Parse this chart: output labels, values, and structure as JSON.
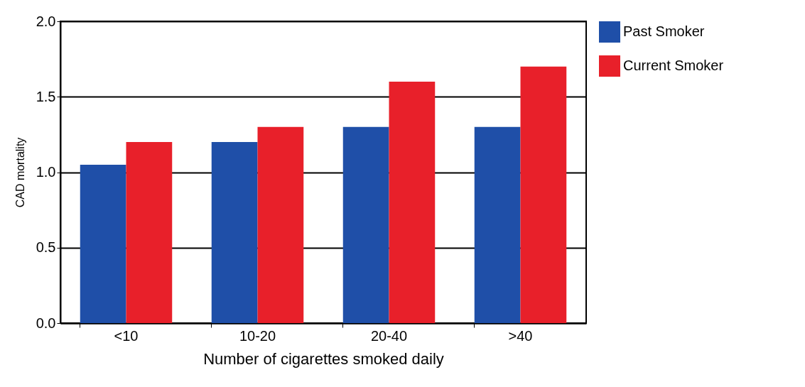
{
  "chart_data": {
    "type": "bar",
    "xlabel": "Number of cigarettes smoked daily",
    "ylabel": "CAD mortality",
    "categories": [
      "<10",
      "10-20",
      "20-40",
      ">40"
    ],
    "series": [
      {
        "name": "Past Smoker",
        "color": "#1f4fa8",
        "values": [
          1.05,
          1.2,
          1.3,
          1.3
        ]
      },
      {
        "name": "Current Smoker",
        "color": "#e8202a",
        "values": [
          1.2,
          1.3,
          1.6,
          1.7
        ]
      }
    ],
    "ylim": [
      0,
      2
    ],
    "yticks": [
      {
        "value": 0,
        "label": "0.0"
      },
      0.5,
      {
        "value": 1,
        "label": "1.0"
      },
      1.5,
      {
        "value": 2,
        "label": "2.0"
      }
    ],
    "grid": "y",
    "legend": "top right"
  }
}
